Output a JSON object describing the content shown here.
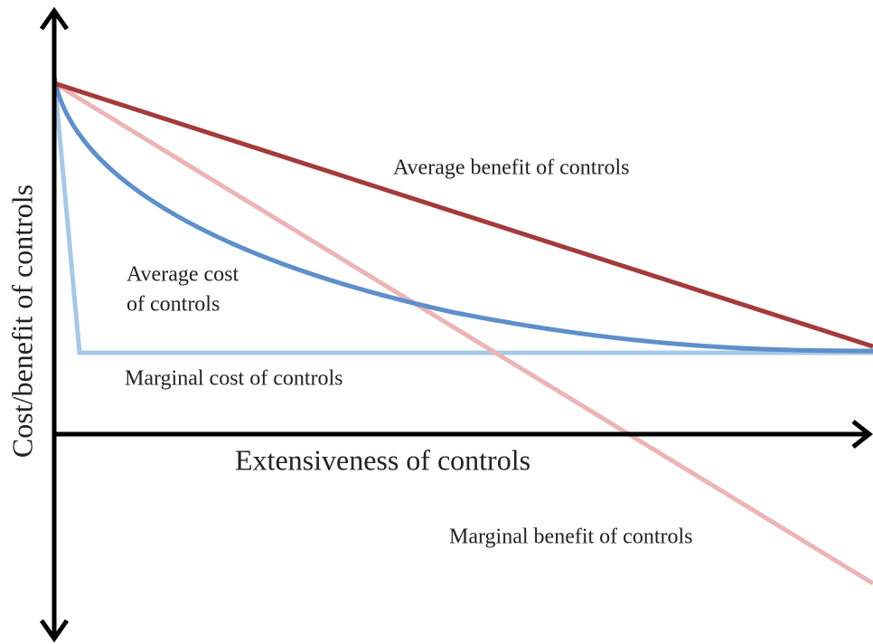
{
  "axes": {
    "x_label": "Extensiveness of controls",
    "y_label": "Cost/benefit of controls"
  },
  "curves": {
    "average_benefit": "Average benefit of controls",
    "average_cost": [
      "Average cost",
      "of controls"
    ],
    "marginal_cost": "Marginal cost of controls",
    "marginal_benefit": "Marginal benefit of controls"
  }
}
